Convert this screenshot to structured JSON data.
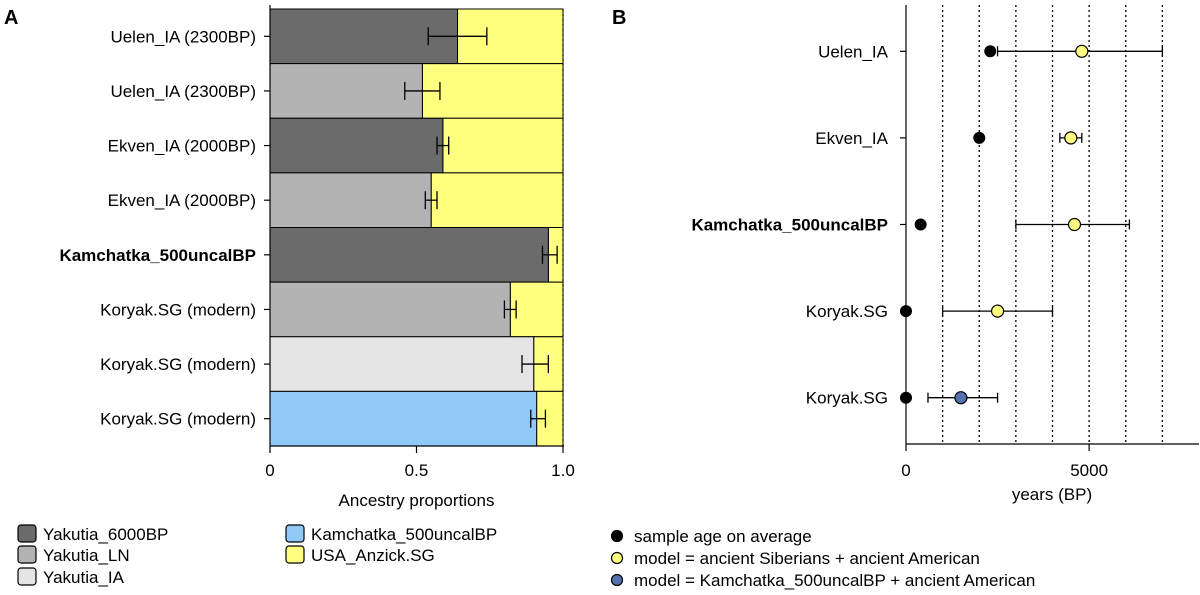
{
  "colors": {
    "Yakutia_6000BP": "#6b6b6b",
    "Yakutia_LN": "#b3b3b3",
    "Yakutia_IA": "#e4e4e4",
    "Kamchatka_500uncalBP": "#90c8f8",
    "USA_Anzick.SG": "#ffff80",
    "black_dot": "#000000",
    "yellow_dot": "#ffff80",
    "blue_dot": "#5572b0"
  },
  "chart_data": [
    {
      "panel": "A",
      "type": "bar",
      "orientation": "horizontal",
      "stacked": true,
      "xlabel": "Ancestry proportions",
      "xlim": [
        0,
        1
      ],
      "xticks": [
        0,
        0.5,
        1.0
      ],
      "xtick_labels": [
        "0",
        "0.5",
        "1.0"
      ],
      "grid": "vertical dotted",
      "categories": [
        "Uelen_IA (2300BP)",
        "Uelen_IA (2300BP)",
        "Ekven_IA (2000BP)",
        "Ekven_IA (2000BP)",
        "Kamchatka_500uncalBP",
        "Koryak.SG (modern)",
        "Koryak.SG (modern)",
        "Koryak.SG (modern)"
      ],
      "bold_category_index": 4,
      "bars": [
        {
          "source": "Yakutia_6000BP",
          "value": 0.64,
          "err_low": 0.54,
          "err_high": 0.74
        },
        {
          "source": "Yakutia_LN",
          "value": 0.52,
          "err_low": 0.46,
          "err_high": 0.58
        },
        {
          "source": "Yakutia_6000BP",
          "value": 0.59,
          "err_low": 0.57,
          "err_high": 0.61
        },
        {
          "source": "Yakutia_LN",
          "value": 0.55,
          "err_low": 0.53,
          "err_high": 0.57
        },
        {
          "source": "Yakutia_6000BP",
          "value": 0.95,
          "err_low": 0.93,
          "err_high": 0.98
        },
        {
          "source": "Yakutia_LN",
          "value": 0.82,
          "err_low": 0.8,
          "err_high": 0.84
        },
        {
          "source": "Yakutia_IA",
          "value": 0.9,
          "err_low": 0.86,
          "err_high": 0.95
        },
        {
          "source": "Kamchatka_500uncalBP",
          "value": 0.91,
          "err_low": 0.89,
          "err_high": 0.94
        }
      ],
      "remainder_source": "USA_Anzick.SG"
    },
    {
      "panel": "B",
      "type": "scatter",
      "orientation": "horizontal",
      "xlabel": "years (BP)",
      "xlim": [
        0,
        8000
      ],
      "xticks": [
        0,
        5000
      ],
      "xtick_labels": [
        "0",
        "5000"
      ],
      "grid_lines_x": [
        1000,
        2000,
        3000,
        4000,
        5000,
        6000,
        7000
      ],
      "categories": [
        "Uelen_IA",
        "Ekven_IA",
        "Kamchatka_500uncalBP",
        "Koryak.SG",
        "Koryak.SG"
      ],
      "bold_category_index": 2,
      "sample_age": [
        2300,
        2000,
        400,
        0,
        0
      ],
      "model": [
        {
          "value": 4800,
          "low": 2500,
          "high": 7000,
          "type": "ancient"
        },
        {
          "value": 4500,
          "low": 4200,
          "high": 4800,
          "type": "ancient"
        },
        {
          "value": 4600,
          "low": 3000,
          "high": 6100,
          "type": "ancient"
        },
        {
          "value": 2500,
          "low": 1000,
          "high": 4000,
          "type": "ancient"
        },
        {
          "value": 1500,
          "low": 600,
          "high": 2500,
          "type": "kamchatka"
        }
      ]
    }
  ],
  "panel_labels": {
    "a": "A",
    "b": "B"
  },
  "legend_a": [
    {
      "label": "Yakutia_6000BP",
      "key": "Yakutia_6000BP"
    },
    {
      "label": "Yakutia_LN",
      "key": "Yakutia_LN"
    },
    {
      "label": "Yakutia_IA",
      "key": "Yakutia_IA"
    },
    {
      "label": "Kamchatka_500uncalBP",
      "key": "Kamchatka_500uncalBP"
    },
    {
      "label": "USA_Anzick.SG",
      "key": "USA_Anzick.SG"
    }
  ],
  "legend_b": [
    {
      "label": "sample age on average",
      "key": "black_dot"
    },
    {
      "label": "model = ancient Siberians + ancient American",
      "key": "yellow_dot"
    },
    {
      "label": "model = Kamchatka_500uncalBP + ancient American",
      "key": "blue_dot"
    }
  ]
}
